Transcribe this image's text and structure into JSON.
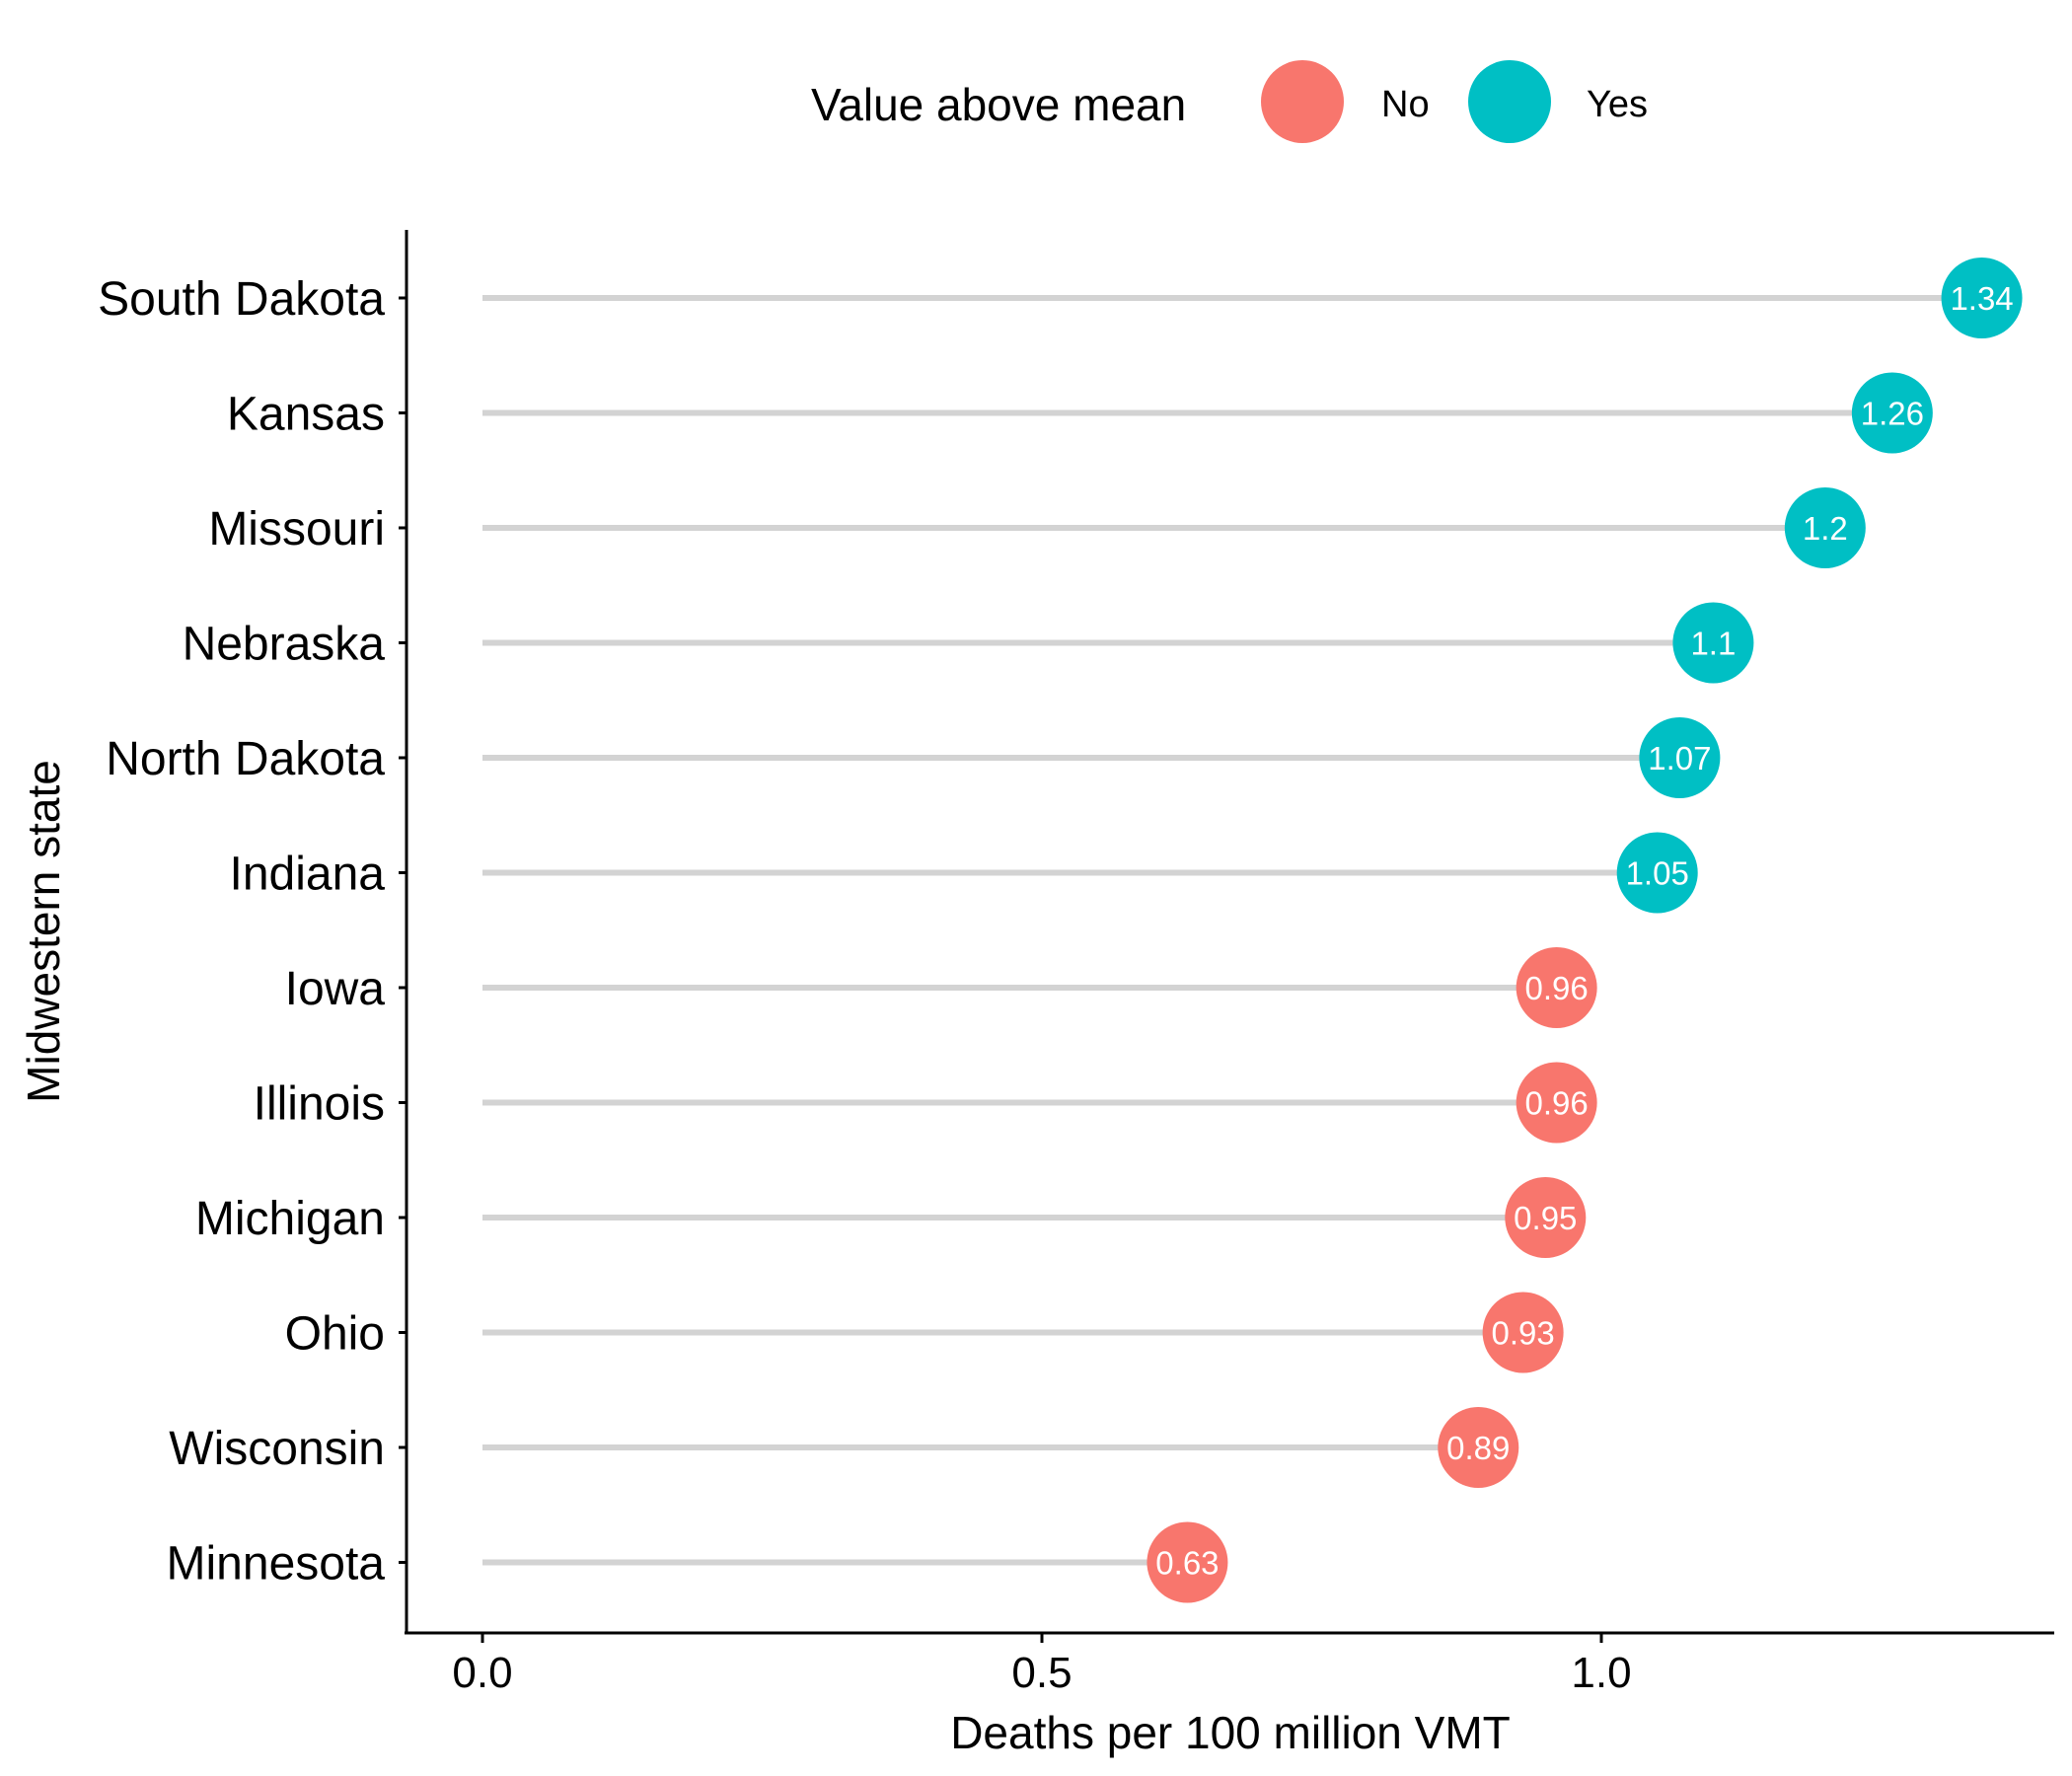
{
  "chart_data": {
    "type": "lollipop",
    "xlabel": "Deaths per 100 million VMT",
    "ylabel": "Midwestern state",
    "xlim": [
      0,
      1.34
    ],
    "xticks": [
      "0.0",
      "0.5",
      "1.0"
    ],
    "xtick_values": [
      0,
      0.5,
      1.0
    ],
    "legend": {
      "title": "Value above mean",
      "position": "top",
      "items": [
        {
          "label": "No",
          "color": "#F8766D"
        },
        {
          "label": "Yes",
          "color": "#00BFC4"
        }
      ]
    },
    "points": [
      {
        "state": "South Dakota",
        "value": 1.34,
        "label": "1.34",
        "above_mean": "Yes"
      },
      {
        "state": "Kansas",
        "value": 1.26,
        "label": "1.26",
        "above_mean": "Yes"
      },
      {
        "state": "Missouri",
        "value": 1.2,
        "label": "1.2",
        "above_mean": "Yes"
      },
      {
        "state": "Nebraska",
        "value": 1.1,
        "label": "1.1",
        "above_mean": "Yes"
      },
      {
        "state": "North Dakota",
        "value": 1.07,
        "label": "1.07",
        "above_mean": "Yes"
      },
      {
        "state": "Indiana",
        "value": 1.05,
        "label": "1.05",
        "above_mean": "Yes"
      },
      {
        "state": "Iowa",
        "value": 0.96,
        "label": "0.96",
        "above_mean": "No"
      },
      {
        "state": "Illinois",
        "value": 0.96,
        "label": "0.96",
        "above_mean": "No"
      },
      {
        "state": "Michigan",
        "value": 0.95,
        "label": "0.95",
        "above_mean": "No"
      },
      {
        "state": "Ohio",
        "value": 0.93,
        "label": "0.93",
        "above_mean": "No"
      },
      {
        "state": "Wisconsin",
        "value": 0.89,
        "label": "0.89",
        "above_mean": "No"
      },
      {
        "state": "Minnesota",
        "value": 0.63,
        "label": "0.63",
        "above_mean": "No"
      }
    ]
  }
}
